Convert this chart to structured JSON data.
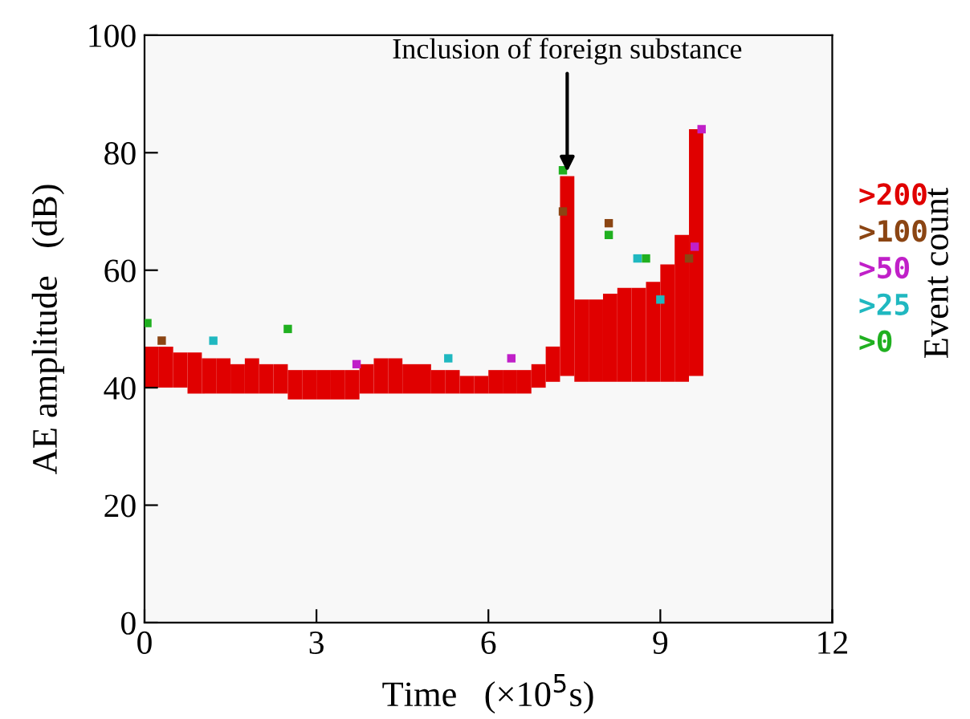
{
  "chart_data": {
    "type": "bar",
    "xlabel": "Time   (×10$^{5}$s)",
    "ylabel": "AE amplitude   (dB)",
    "legend_title": "Event count",
    "xlim": [
      0,
      12
    ],
    "xticks": [
      0,
      3,
      6,
      9,
      12
    ],
    "ylim": [
      0,
      100
    ],
    "yticks": [
      0,
      20,
      40,
      60,
      80,
      100
    ],
    "grid": false,
    "legend": "right",
    "marker": "square",
    "annotations": [
      {
        "text": "Inclusion of foreign substance",
        "x": 7.375,
        "y": 76
      }
    ],
    "series": [
      {
        "name": ">200",
        "color": "#e00000",
        "x": [
          0.125,
          0.375,
          0.625,
          0.875,
          1.125,
          1.375,
          1.625,
          1.875,
          2.125,
          2.375,
          2.625,
          2.875,
          3.125,
          3.375,
          3.625,
          3.875,
          4.125,
          4.375,
          4.625,
          4.875,
          5.125,
          5.375,
          5.625,
          5.875,
          6.125,
          6.375,
          6.625,
          6.875,
          7.125,
          7.375,
          7.625,
          7.875,
          8.125,
          8.375,
          8.625,
          8.875,
          9.125,
          9.375,
          9.625
        ],
        "base": [
          40,
          40,
          40,
          39,
          39,
          39,
          39,
          39,
          39,
          39,
          38,
          38,
          38,
          38,
          38,
          39,
          39,
          39,
          39,
          39,
          39,
          39,
          39,
          39,
          39,
          39,
          39,
          40,
          41,
          42,
          41,
          41,
          41,
          41,
          41,
          41,
          41,
          41,
          42
        ],
        "values": [
          7,
          7,
          6,
          7,
          6,
          6,
          5,
          6,
          5,
          5,
          5,
          5,
          5,
          5,
          5,
          5,
          6,
          6,
          5,
          5,
          4,
          4,
          3,
          3,
          4,
          4,
          4,
          4,
          6,
          34,
          14,
          14,
          15,
          16,
          16,
          17,
          20,
          25,
          42
        ]
      },
      {
        "name": ">100",
        "type": "scatter",
        "color": "#8b4513",
        "x": [
          0.3,
          7.3,
          8.1,
          9.5
        ],
        "values": [
          48,
          70,
          68,
          62
        ]
      },
      {
        "name": ">50",
        "type": "scatter",
        "color": "#c020c8",
        "x": [
          3.7,
          6.4,
          9.6,
          9.72
        ],
        "values": [
          44,
          45,
          64,
          84
        ]
      },
      {
        "name": ">25",
        "type": "scatter",
        "color": "#20b8c0",
        "x": [
          1.2,
          5.3,
          8.6,
          9.0
        ],
        "values": [
          48,
          45,
          62,
          55
        ]
      },
      {
        "name": ">0",
        "type": "scatter",
        "color": "#20b020",
        "x": [
          0.05,
          2.5,
          7.3,
          8.1,
          8.75
        ],
        "values": [
          51,
          50,
          77,
          66,
          62
        ]
      }
    ]
  }
}
